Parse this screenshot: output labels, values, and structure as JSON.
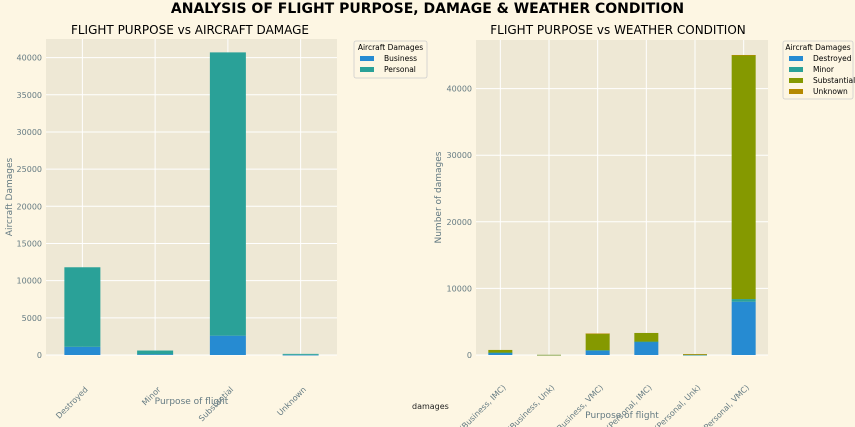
{
  "suptitle": "ANALYSIS OF FLIGHT PURPOSE, DAMAGE & WEATHER CONDITION",
  "figtext": "damages",
  "colors": {
    "Destroyed": "#268bd2",
    "Minor": "#2aa198",
    "Business": "#268bd2",
    "Personal": "#2aa198",
    "Substantial": "#859900",
    "Unknown": "#b58900"
  },
  "chart_data": [
    {
      "type": "bar",
      "stacked": true,
      "title": "FLIGHT PURPOSE vs AIRCRAFT DAMAGE",
      "xlabel": "Purpose of flight",
      "ylabel": "Aircraft Damages",
      "ylim": [
        0,
        42500
      ],
      "yticks": [
        0,
        5000,
        10000,
        15000,
        20000,
        25000,
        30000,
        35000,
        40000
      ],
      "ytick_labels": [
        "0",
        "5000",
        "10000",
        "15000",
        "20000",
        "25000",
        "30000",
        "35000",
        "40000"
      ],
      "categories": [
        "Destroyed",
        "Minor",
        "Substantial",
        "Unknown"
      ],
      "legend_title": "Aircraft Damages",
      "legend_position": "outside-right",
      "grid": true,
      "series": [
        {
          "name": "Business",
          "values": [
            1100,
            100,
            2600,
            20
          ]
        },
        {
          "name": "Personal",
          "values": [
            10700,
            500,
            38100,
            130
          ]
        }
      ]
    },
    {
      "type": "bar",
      "stacked": true,
      "title": "FLIGHT PURPOSE vs WEATHER CONDITION",
      "xlabel": "Purpose of flight",
      "ylabel": "Number of damages",
      "ylim": [
        0,
        47300
      ],
      "yticks": [
        0,
        10000,
        20000,
        30000,
        40000
      ],
      "ytick_labels": [
        "0",
        "10000",
        "20000",
        "30000",
        "40000"
      ],
      "categories": [
        "(Business, IMC)",
        "(Business, Unk)",
        "(Business, VMC)",
        "(Personal, IMC)",
        "(Personal, Unk)",
        "(Personal, VMC)"
      ],
      "legend_title": "Aircraft Damages",
      "legend_position": "outside-right",
      "grid": true,
      "series": [
        {
          "name": "Destroyed",
          "values": [
            350,
            10,
            700,
            2000,
            30,
            8000
          ]
        },
        {
          "name": "Minor",
          "values": [
            10,
            0,
            20,
            10,
            5,
            400
          ]
        },
        {
          "name": "Substantial",
          "values": [
            400,
            20,
            2500,
            1300,
            90,
            36600
          ]
        },
        {
          "name": "Unknown",
          "values": [
            0,
            0,
            10,
            0,
            10,
            50
          ]
        }
      ]
    }
  ]
}
